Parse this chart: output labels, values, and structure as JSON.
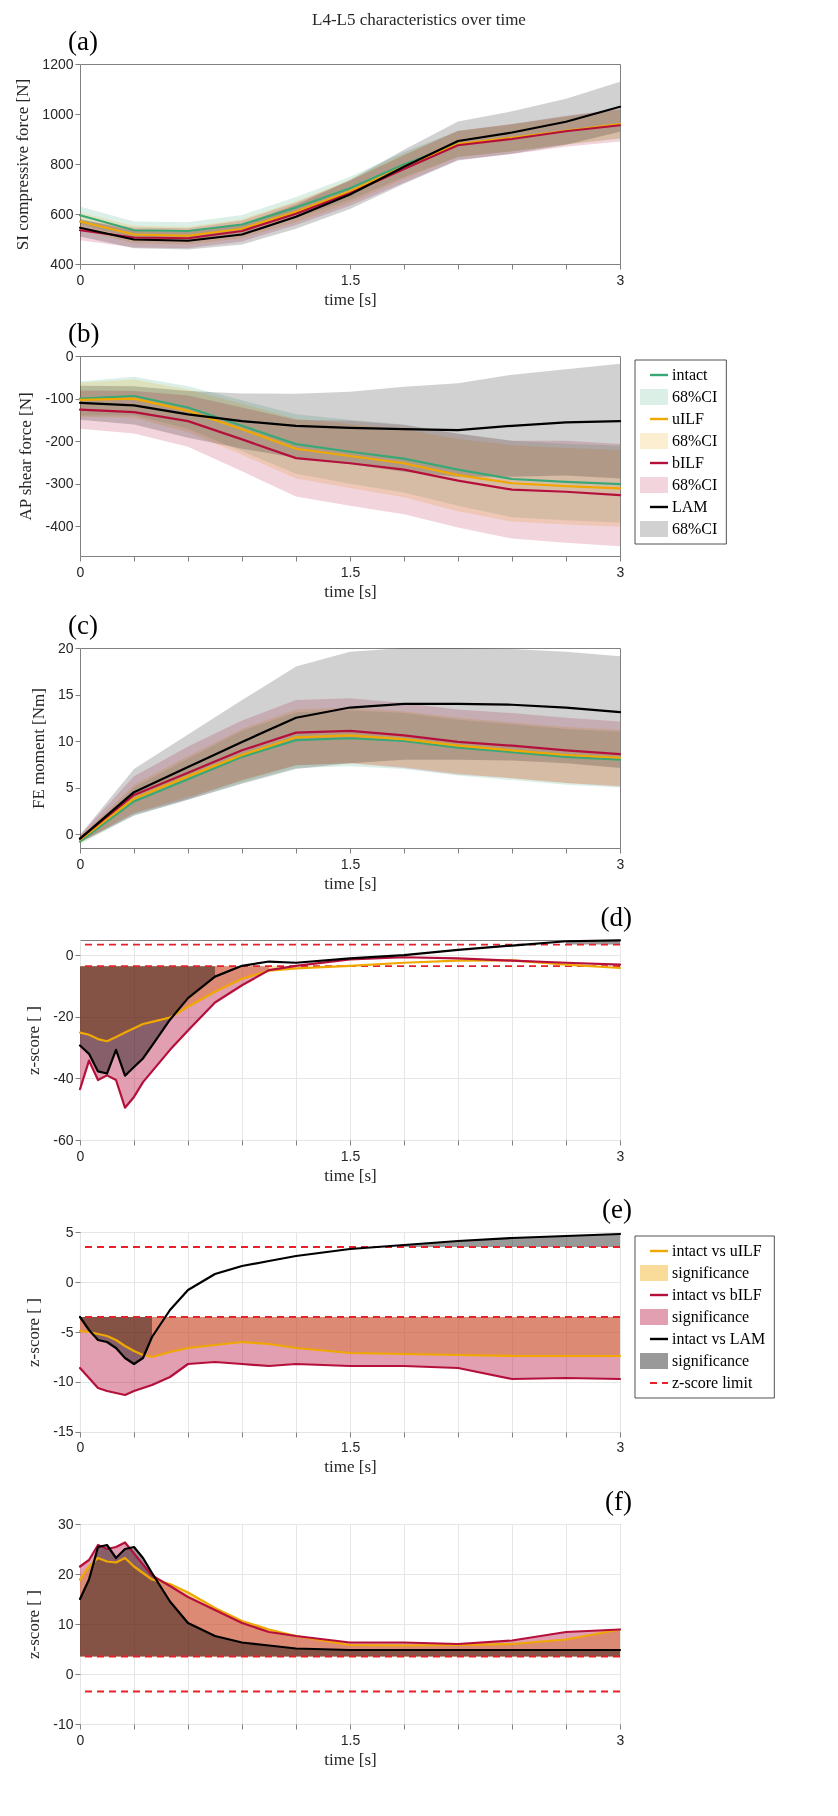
{
  "chart_data": [
    {
      "type": "line",
      "title": "L4-L5 characteristics over time",
      "annotations": [
        "(a)"
      ],
      "xlabel": "time [s]",
      "ylabel": "SI compressive force [N]",
      "x": [
        0,
        0.3,
        0.6,
        0.9,
        1.2,
        1.5,
        1.8,
        2.1,
        2.4,
        2.7,
        3
      ],
      "xlim": [
        0,
        3
      ],
      "xticks": [
        0,
        {
          "value": 0.3,
          "label": null
        },
        {
          "value": 0.6,
          "label": null
        },
        {
          "value": 0.9,
          "label": null
        },
        {
          "value": 1.2,
          "label": null
        },
        1.5,
        {
          "value": 1.8,
          "label": null
        },
        {
          "value": 2.1,
          "label": null
        },
        {
          "value": 2.4,
          "label": null
        },
        {
          "value": 2.7,
          "label": null
        },
        3
      ],
      "ylim": [
        400,
        1200
      ],
      "yticks": [
        400,
        600,
        800,
        1000,
        1200
      ],
      "series": [
        {
          "color": "#3aa876",
          "values": [
            595,
            535,
            532,
            558,
            626,
            703,
            798,
            880,
            null,
            null,
            null
          ],
          "lower": [
            560,
            500,
            497,
            520,
            584,
            657,
            748,
            828,
            851,
            879,
            902
          ],
          "upper": [
            630,
            570,
            567,
            596,
            668,
            749,
            848,
            932,
            959,
            991,
            1018
          ]
        },
        {
          "color": "#f0a800",
          "values": [
            570,
            518,
            513,
            541,
            609,
            691,
            790,
            880,
            905,
            933,
            960
          ],
          "lower": [
            535,
            483,
            478,
            503,
            567,
            645,
            740,
            828,
            851,
            877,
            902
          ],
          "upper": [
            605,
            553,
            548,
            579,
            651,
            737,
            840,
            932,
            959,
            989,
            1018
          ]
        },
        {
          "color": "#b5103c",
          "values": [
            535,
            506,
            503,
            532,
            601,
            683,
            780,
            875,
            900,
            931,
            955
          ],
          "lower": [
            495,
            466,
            463,
            490,
            556,
            633,
            725,
            817,
            840,
            869,
            890
          ],
          "upper": [
            575,
            546,
            543,
            574,
            646,
            733,
            835,
            933,
            960,
            993,
            1020
          ]
        },
        {
          "color": "#000000",
          "values": [
            545,
            498,
            493,
            518,
            589,
            678,
            789,
            892,
            926,
            969,
            1029
          ],
          "lower": [
            510,
            463,
            458,
            478,
            541,
            620,
            721,
            814,
            841,
            877,
            929
          ],
          "upper": [
            580,
            533,
            528,
            558,
            637,
            736,
            857,
            970,
            1011,
            1061,
            1129
          ]
        }
      ]
    },
    {
      "type": "line",
      "annotations": [
        "(b)",
        "68%CI",
        "68%CI",
        "68%CI",
        "68%CI"
      ],
      "xlabel": "time [s]",
      "ylabel": "AP shear force [N]",
      "legend": "right",
      "x": [
        0,
        0.3,
        0.6,
        0.9,
        1.2,
        1.5,
        1.8,
        2.1,
        2.4,
        2.7,
        3
      ],
      "xlim": [
        0,
        3
      ],
      "xticks": [
        0,
        {
          "value": 0.3,
          "label": null
        },
        {
          "value": 0.6,
          "label": null
        },
        {
          "value": 0.9,
          "label": null
        },
        {
          "value": 1.2,
          "label": null
        },
        1.5,
        {
          "value": 1.8,
          "label": null
        },
        {
          "value": 2.1,
          "label": null
        },
        {
          "value": 2.4,
          "label": null
        },
        {
          "value": 2.7,
          "label": null
        },
        3
      ],
      "ylim": [
        -470,
        0
      ],
      "yticks": [
        -400,
        -300,
        -200,
        -100,
        0
      ],
      "series": [
        {
          "name": "intact",
          "color": "#3aa876",
          "values": [
            -100,
            -94,
            -121,
            -164,
            -207,
            -225,
            -241,
            -267,
            -289,
            -296,
            -301
          ],
          "lower": [
            -140,
            -139,
            -171,
            -224,
            -277,
            -300,
            -321,
            -352,
            -379,
            -386,
            -391
          ],
          "upper": [
            -60,
            -49,
            -71,
            -104,
            -137,
            -150,
            -161,
            -182,
            -199,
            -206,
            -211
          ]
        },
        {
          "name": "uILF",
          "color": "#f0a800",
          "values": [
            -103,
            -100,
            -129,
            -172,
            -218,
            -235,
            -252,
            -280,
            -299,
            -306,
            -311
          ],
          "lower": [
            -143,
            -145,
            -179,
            -232,
            -288,
            -310,
            -332,
            -365,
            -389,
            -396,
            -401
          ],
          "upper": [
            -63,
            -55,
            -79,
            -112,
            -148,
            -160,
            -172,
            -195,
            -209,
            -216,
            -221
          ]
        },
        {
          "name": "bILF",
          "color": "#b5103c",
          "values": [
            -126,
            -132,
            -153,
            -196,
            -240,
            -252,
            -267,
            -293,
            -314,
            -319,
            -327
          ],
          "lower": [
            -171,
            -182,
            -213,
            -271,
            -330,
            -352,
            -372,
            -403,
            -429,
            -439,
            -447
          ],
          "upper": [
            -81,
            -82,
            -93,
            -121,
            -150,
            -152,
            -162,
            -183,
            -199,
            -199,
            -207
          ]
        },
        {
          "name": "LAM",
          "color": "#000000",
          "values": [
            -110,
            -116,
            -137,
            -153,
            -164,
            -169,
            -172,
            -174,
            -164,
            -156,
            -153
          ],
          "lower": [
            -150,
            -161,
            -192,
            -218,
            -239,
            -254,
            -272,
            -284,
            -284,
            -281,
            -288
          ],
          "upper": [
            -70,
            -71,
            -82,
            -88,
            -89,
            -84,
            -72,
            -64,
            -44,
            -31,
            -18
          ]
        }
      ]
    },
    {
      "type": "line",
      "annotations": [
        "(c)"
      ],
      "xlabel": "time [s]",
      "ylabel": "FE moment [Nm]",
      "x": [
        0,
        0.3,
        0.6,
        0.9,
        1.2,
        1.5,
        1.8,
        2.1,
        2.4,
        2.7,
        3
      ],
      "xlim": [
        0,
        3
      ],
      "xticks": [
        0,
        {
          "value": 0.3,
          "label": null
        },
        {
          "value": 0.6,
          "label": null
        },
        {
          "value": 0.9,
          "label": null
        },
        {
          "value": 1.2,
          "label": null
        },
        1.5,
        {
          "value": 1.8,
          "label": null
        },
        {
          "value": 2.1,
          "label": null
        },
        {
          "value": 2.4,
          "label": null
        },
        {
          "value": 2.7,
          "label": null
        },
        3
      ],
      "ylim": [
        -1.5,
        20
      ],
      "yticks": [
        0,
        5,
        10,
        15,
        20
      ],
      "series": [
        {
          "color": "#3aa876",
          "values": [
            -0.8,
            3.5,
            5.9,
            8.3,
            10.1,
            10.3,
            10.0,
            9.3,
            8.8,
            8.3,
            8.0
          ],
          "lower": [
            -1.1,
            2.0,
            3.7,
            5.5,
            7.1,
            7.3,
            7.0,
            6.3,
            5.8,
            5.3,
            5.0
          ],
          "upper": [
            -0.5,
            5.0,
            8.1,
            11.1,
            13.1,
            13.3,
            13.0,
            12.3,
            11.8,
            11.3,
            11.0
          ]
        },
        {
          "color": "#f0a800",
          "values": [
            -0.6,
            3.8,
            6.2,
            8.5,
            10.4,
            10.6,
            10.2,
            9.5,
            9.0,
            8.5,
            8.2
          ],
          "lower": [
            -0.9,
            2.3,
            4.0,
            5.7,
            7.4,
            7.6,
            7.2,
            6.5,
            6.0,
            5.5,
            5.2
          ],
          "upper": [
            -0.3,
            5.3,
            8.4,
            11.3,
            13.4,
            13.6,
            13.2,
            12.5,
            12.0,
            11.5,
            11.2
          ]
        },
        {
          "color": "#b5103c",
          "values": [
            -0.5,
            4.2,
            6.6,
            9.0,
            10.9,
            11.1,
            10.6,
            9.9,
            9.5,
            9.0,
            8.6
          ],
          "lower": [
            -0.9,
            2.2,
            3.8,
            5.8,
            7.4,
            7.6,
            7.1,
            6.4,
            6.0,
            5.5,
            5.1
          ],
          "upper": [
            -0.1,
            6.2,
            9.4,
            12.2,
            14.4,
            14.6,
            14.1,
            13.4,
            13.0,
            12.5,
            12.1
          ]
        },
        {
          "color": "#000000",
          "values": [
            -0.5,
            4.5,
            7.2,
            9.9,
            12.5,
            13.6,
            14.0,
            14.0,
            13.9,
            13.6,
            13.1
          ],
          "lower": [
            -0.9,
            2.0,
            3.7,
            5.4,
            7.0,
            7.6,
            8.0,
            8.0,
            7.9,
            7.6,
            7.1
          ],
          "upper": [
            -0.1,
            7.0,
            10.7,
            14.4,
            18.0,
            19.6,
            20.0,
            20.0,
            19.9,
            19.6,
            19.1
          ]
        }
      ]
    },
    {
      "type": "line",
      "annotations": [
        "(d)"
      ],
      "xlabel": "time [s]",
      "ylabel": "z-score [ ]",
      "grid": true,
      "x": [
        0,
        0.05,
        0.1,
        0.15,
        0.2,
        0.25,
        0.3,
        0.35,
        0.4,
        0.5,
        0.6,
        0.75,
        0.9,
        1.05,
        1.2,
        1.5,
        1.8,
        2.1,
        2.4,
        2.7,
        3
      ],
      "xlim": [
        0,
        3
      ],
      "xticks": [
        0,
        {
          "value": 0.3,
          "label": null
        },
        {
          "value": 0.6,
          "label": null
        },
        {
          "value": 0.9,
          "label": null
        },
        {
          "value": 1.2,
          "label": null
        },
        1.5,
        {
          "value": 1.8,
          "label": null
        },
        {
          "value": 2.1,
          "label": null
        },
        {
          "value": 2.4,
          "label": null
        },
        {
          "value": 2.7,
          "label": null
        },
        3
      ],
      "ylim": [
        -60,
        5
      ],
      "yticks": [
        -60,
        -40,
        -20,
        0
      ],
      "ref_lines": [
        {
          "axis": "y",
          "value": 3.5,
          "color": "#e8202a",
          "line_style": "dashed"
        },
        {
          "axis": "y",
          "value": -3.5,
          "color": "#e8202a",
          "line_style": "dashed"
        }
      ],
      "series": [
        {
          "color": "#f0a800",
          "values": [
            -25.1,
            -25.8,
            -27.2,
            -27.9,
            -26.5,
            -25.1,
            -23.7,
            -22.3,
            -21.6,
            -20.2,
            -16.7,
            -11.8,
            -7.6,
            -5.0,
            -4.2,
            -3.4,
            -2.4,
            -1.7,
            -1.6,
            -3.0,
            -4.1
          ],
          "lower": [
            -25.1,
            -25.8,
            -27.2,
            -27.9,
            -26.5,
            -25.1,
            -23.7,
            -22.3,
            -21.6,
            -20.2,
            -16.7,
            -11.8,
            -7.6,
            -5.0,
            -4.2,
            null,
            null,
            null,
            null,
            null,
            null
          ],
          "upper": [
            -3.5,
            -3.5,
            -3.5,
            -3.5,
            -3.5,
            -3.5,
            -3.5,
            -3.5,
            -3.5,
            -3.5,
            -3.5,
            -3.5,
            -3.5,
            -3.5,
            -3.5,
            null,
            null,
            null,
            null,
            null,
            null
          ]
        },
        {
          "color": "#b5103c",
          "values": [
            -43.5,
            -34.2,
            -40.5,
            -39.0,
            -40.5,
            -49.5,
            -46.0,
            -41.2,
            -37.7,
            -30.7,
            -24.4,
            -15.3,
            -9.7,
            -4.8,
            -3.4,
            -1.3,
            -0.6,
            -1.0,
            -1.7,
            -2.4,
            -3.0
          ],
          "lower": [
            -43.5,
            -34.2,
            -40.5,
            -39.0,
            -40.5,
            -49.5,
            -46.0,
            -41.2,
            -37.7,
            -30.7,
            -24.4,
            -15.3,
            -9.7,
            -4.8,
            null,
            null,
            null,
            null,
            null,
            null,
            null
          ],
          "upper": [
            -3.5,
            -3.5,
            -3.5,
            -3.5,
            -3.5,
            -3.5,
            -3.5,
            -3.5,
            -3.5,
            -3.5,
            -3.5,
            -3.5,
            -3.5,
            -3.5,
            null,
            null,
            null,
            null,
            null,
            null,
            null
          ]
        },
        {
          "color": "#000000",
          "values": [
            -29.3,
            -32.0,
            -37.7,
            -38.4,
            -30.7,
            -39.1,
            -36.3,
            -33.5,
            -29.3,
            -20.9,
            -13.9,
            -6.9,
            -3.4,
            -2.0,
            -2.4,
            -1.0,
            0.1,
            1.8,
            3.2,
            4.6,
            4.9
          ],
          "lower": [
            -29.3,
            -32.0,
            -37.7,
            -38.4,
            -30.7,
            -39.1,
            -36.3,
            -33.5,
            -29.3,
            -20.9,
            -13.9,
            -6.9,
            null,
            null,
            null,
            null,
            null,
            null,
            null,
            3.5,
            3.5
          ],
          "upper": [
            -3.5,
            -3.5,
            -3.5,
            -3.5,
            -3.5,
            -3.5,
            -3.5,
            -3.5,
            -3.5,
            -3.5,
            -3.5,
            -3.5,
            null,
            null,
            null,
            null,
            null,
            null,
            null,
            4.6,
            4.9
          ]
        }
      ]
    },
    {
      "type": "line",
      "annotations": [
        "(e)",
        "significance",
        "significance",
        "significance"
      ],
      "xlabel": "time [s]",
      "ylabel": "z-score [ ]",
      "grid": true,
      "legend": "right",
      "x": [
        0,
        0.05,
        0.1,
        0.15,
        0.2,
        0.25,
        0.3,
        0.35,
        0.4,
        0.5,
        0.6,
        0.75,
        0.9,
        1.05,
        1.2,
        1.5,
        1.8,
        2.1,
        2.4,
        2.7,
        3
      ],
      "xlim": [
        0,
        3
      ],
      "xticks": [
        0,
        {
          "value": 0.3,
          "label": null
        },
        {
          "value": 0.6,
          "label": null
        },
        {
          "value": 0.9,
          "label": null
        },
        {
          "value": 1.2,
          "label": null
        },
        1.5,
        {
          "value": 1.8,
          "label": null
        },
        {
          "value": 2.1,
          "label": null
        },
        {
          "value": 2.4,
          "label": null
        },
        {
          "value": 2.7,
          "label": null
        },
        3
      ],
      "ylim": [
        -15,
        5
      ],
      "yticks": [
        -15,
        -10,
        -5,
        0,
        5
      ],
      "ref_lines": [
        {
          "axis": "y",
          "value": 3.5,
          "label": "z-score limit",
          "color": "#e8202a",
          "line_style": "dashed"
        },
        {
          "axis": "y",
          "value": -3.5,
          "color": "#e8202a",
          "line_style": "dashed"
        }
      ],
      "series": [
        {
          "name": "intact vs uILF",
          "color": "#f0a800",
          "values": [
            -4.9,
            -5.0,
            -5.2,
            -5.4,
            -5.8,
            -6.4,
            -6.9,
            -7.3,
            -7.5,
            -7.0,
            -6.6,
            -6.3,
            -6.0,
            -6.2,
            -6.6,
            -7.1,
            -7.2,
            -7.3,
            -7.4,
            -7.4,
            -7.4
          ],
          "lower": [
            -4.9,
            -5.0,
            -5.2,
            -5.4,
            -5.8,
            -6.4,
            -6.9,
            -7.3,
            -7.5,
            -7.0,
            -6.6,
            -6.3,
            -6.0,
            -6.2,
            -6.6,
            -7.1,
            -7.2,
            -7.3,
            -7.4,
            -7.4,
            -7.4
          ],
          "upper": [
            -3.5,
            -3.5,
            -3.5,
            -3.5,
            -3.5,
            -3.5,
            -3.5,
            -3.5,
            -3.5,
            -3.5,
            -3.5,
            -3.5,
            -3.5,
            -3.5,
            -3.5,
            -3.5,
            -3.5,
            -3.5,
            -3.5,
            -3.5,
            -3.5
          ]
        },
        {
          "name": "intact vs bILF",
          "color": "#b5103c",
          "values": [
            -8.6,
            -9.6,
            -10.6,
            -10.9,
            -11.1,
            -11.3,
            -10.9,
            -10.6,
            -10.3,
            -9.5,
            -8.2,
            -8.0,
            -8.2,
            -8.4,
            -8.2,
            -8.4,
            -8.4,
            -8.6,
            -9.7,
            -9.6,
            -9.7
          ],
          "lower": [
            -8.6,
            -9.6,
            -10.6,
            -10.9,
            -11.1,
            -11.3,
            -10.9,
            -10.6,
            -10.3,
            -9.5,
            -8.2,
            -8.0,
            -8.2,
            -8.4,
            -8.2,
            -8.4,
            -8.4,
            -8.6,
            -9.7,
            -9.6,
            -9.7
          ],
          "upper": [
            -3.5,
            -3.5,
            -3.5,
            -3.5,
            -3.5,
            -3.5,
            -3.5,
            -3.5,
            -3.5,
            -3.5,
            -3.5,
            -3.5,
            -3.5,
            -3.5,
            -3.5,
            -3.5,
            -3.5,
            -3.5,
            -3.5,
            -3.5,
            -3.5
          ]
        },
        {
          "name": "intact vs LAM",
          "color": "#000000",
          "values": [
            -3.5,
            -4.8,
            -5.8,
            -6.0,
            -6.6,
            -7.6,
            -8.2,
            -7.6,
            -5.5,
            -2.8,
            -0.8,
            0.8,
            1.6,
            2.1,
            2.6,
            3.3,
            3.7,
            4.1,
            4.4,
            4.6,
            4.8
          ],
          "lower": [
            -3.5,
            -4.8,
            -5.8,
            -6.0,
            -6.6,
            -7.6,
            -8.2,
            -7.6,
            -5.5,
            null,
            null,
            null,
            null,
            null,
            null,
            null,
            3.5,
            3.5,
            3.5,
            3.5,
            3.5
          ],
          "upper": [
            -3.5,
            -3.5,
            -3.5,
            -3.5,
            -3.5,
            -3.5,
            -3.5,
            -3.5,
            -3.5,
            null,
            null,
            null,
            null,
            null,
            null,
            null,
            3.7,
            4.1,
            4.4,
            4.6,
            4.8
          ]
        }
      ]
    },
    {
      "type": "line",
      "annotations": [
        "(f)"
      ],
      "xlabel": "time [s]",
      "ylabel": "z-score [ ]",
      "grid": true,
      "x": [
        0,
        0.05,
        0.1,
        0.15,
        0.2,
        0.25,
        0.3,
        0.35,
        0.4,
        0.5,
        0.6,
        0.75,
        0.9,
        1.05,
        1.2,
        1.5,
        1.8,
        2.1,
        2.4,
        2.7,
        3
      ],
      "xlim": [
        0,
        3
      ],
      "xticks": [
        0,
        {
          "value": 0.3,
          "label": null
        },
        {
          "value": 0.6,
          "label": null
        },
        {
          "value": 0.9,
          "label": null
        },
        {
          "value": 1.2,
          "label": null
        },
        1.5,
        {
          "value": 1.8,
          "label": null
        },
        {
          "value": 2.1,
          "label": null
        },
        {
          "value": 2.4,
          "label": null
        },
        {
          "value": 2.7,
          "label": null
        },
        3
      ],
      "ylim": [
        -10,
        30
      ],
      "yticks": [
        -10,
        0,
        10,
        20,
        30
      ],
      "ref_lines": [
        {
          "axis": "y",
          "value": 3.5,
          "color": "#e8202a",
          "line_style": "dashed"
        },
        {
          "axis": "y",
          "value": -3.5,
          "color": "#e8202a",
          "line_style": "dashed"
        }
      ],
      "series": [
        {
          "color": "#f0a800",
          "values": [
            18.9,
            21.5,
            23.2,
            22.5,
            22.3,
            23.2,
            21.5,
            20.2,
            18.9,
            18.0,
            16.3,
            13.2,
            10.6,
            8.9,
            7.6,
            5.8,
            5.7,
            5.8,
            6.0,
            6.9,
            8.9
          ],
          "lower": [
            3.5,
            3.5,
            3.5,
            3.5,
            3.5,
            3.5,
            3.5,
            3.5,
            3.5,
            3.5,
            3.5,
            3.5,
            3.5,
            3.5,
            3.5,
            3.5,
            3.5,
            3.5,
            3.5,
            3.5,
            3.5
          ],
          "upper": [
            18.9,
            21.5,
            23.2,
            22.5,
            22.3,
            23.2,
            21.5,
            20.2,
            18.9,
            18.0,
            16.3,
            13.2,
            10.6,
            8.9,
            7.6,
            5.8,
            5.7,
            5.8,
            6.0,
            6.9,
            8.9
          ]
        },
        {
          "color": "#b5103c",
          "values": [
            21.5,
            22.8,
            25.8,
            25.0,
            25.4,
            26.3,
            24.1,
            21.9,
            19.7,
            17.6,
            15.4,
            12.8,
            10.2,
            8.4,
            7.6,
            6.3,
            6.3,
            6.0,
            6.7,
            8.4,
            8.9
          ],
          "lower": [
            3.5,
            3.5,
            3.5,
            3.5,
            3.5,
            3.5,
            3.5,
            3.5,
            3.5,
            3.5,
            3.5,
            3.5,
            3.5,
            3.5,
            3.5,
            3.5,
            3.5,
            3.5,
            3.5,
            3.5,
            3.5
          ],
          "upper": [
            21.5,
            22.8,
            25.8,
            25.0,
            25.4,
            26.3,
            24.1,
            21.9,
            19.7,
            17.6,
            15.4,
            12.8,
            10.2,
            8.4,
            7.6,
            6.3,
            6.3,
            6.0,
            6.7,
            8.4,
            8.9
          ]
        },
        {
          "color": "#000000",
          "values": [
            15.0,
            18.9,
            25.4,
            25.8,
            23.2,
            25.0,
            25.4,
            23.2,
            20.2,
            14.5,
            10.2,
            7.6,
            6.3,
            5.7,
            5.1,
            4.8,
            4.8,
            4.8,
            4.8,
            4.8,
            4.8
          ],
          "lower": [
            3.5,
            3.5,
            3.5,
            3.5,
            3.5,
            3.5,
            3.5,
            3.5,
            3.5,
            3.5,
            3.5,
            3.5,
            3.5,
            3.5,
            3.5,
            3.5,
            3.5,
            3.5,
            3.5,
            3.5,
            3.5
          ],
          "upper": [
            15.0,
            18.9,
            25.4,
            25.8,
            23.2,
            25.0,
            25.4,
            23.2,
            20.2,
            14.5,
            10.2,
            7.6,
            6.3,
            5.7,
            5.1,
            4.8,
            4.8,
            4.8,
            4.8,
            4.8,
            4.8
          ]
        }
      ]
    }
  ]
}
